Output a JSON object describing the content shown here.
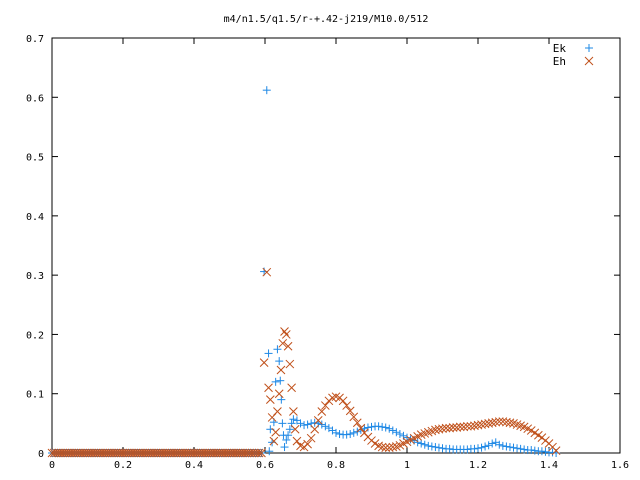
{
  "chart_data": {
    "type": "scatter",
    "title": "m4/n1.5/q1.5/r-+.42-j219/M10.0/512",
    "xlabel": "",
    "ylabel": "",
    "xlim": [
      0,
      1.6
    ],
    "ylim": [
      0,
      0.7
    ],
    "xticks": [
      "0",
      "0.2",
      "0.4",
      "0.6",
      "0.8",
      "1",
      "1.2",
      "1.4",
      "1.6"
    ],
    "yticks": [
      "0",
      "0.1",
      "0.2",
      "0.3",
      "0.4",
      "0.5",
      "0.6",
      "0.7"
    ],
    "grid": false,
    "legend_position": "top-right",
    "series": [
      {
        "name": "Ek",
        "marker": "plus",
        "color": "#1e88e5",
        "points": [
          [
            0.0,
            0.0
          ],
          [
            0.05,
            0.0
          ],
          [
            0.1,
            0.0
          ],
          [
            0.15,
            0.0
          ],
          [
            0.2,
            0.0
          ],
          [
            0.25,
            0.0
          ],
          [
            0.3,
            0.0
          ],
          [
            0.35,
            0.0
          ],
          [
            0.4,
            0.0
          ],
          [
            0.45,
            0.0
          ],
          [
            0.5,
            0.0
          ],
          [
            0.55,
            0.0
          ],
          [
            0.59,
            0.0
          ],
          [
            0.605,
            0.612
          ],
          [
            0.61,
            0.168
          ],
          [
            0.612,
            0.003
          ],
          [
            0.615,
            0.04
          ],
          [
            0.62,
            0.018
          ],
          [
            0.625,
            0.052
          ],
          [
            0.63,
            0.12
          ],
          [
            0.635,
            0.175
          ],
          [
            0.64,
            0.155
          ],
          [
            0.643,
            0.122
          ],
          [
            0.646,
            0.09
          ],
          [
            0.649,
            0.05
          ],
          [
            0.652,
            0.03
          ],
          [
            0.655,
            0.01
          ],
          [
            0.66,
            0.022
          ],
          [
            0.665,
            0.03
          ],
          [
            0.67,
            0.04
          ],
          [
            0.675,
            0.05
          ],
          [
            0.68,
            0.057
          ],
          [
            0.69,
            0.055
          ],
          [
            0.7,
            0.05
          ],
          [
            0.71,
            0.047
          ],
          [
            0.72,
            0.048
          ],
          [
            0.73,
            0.05
          ],
          [
            0.74,
            0.051
          ],
          [
            0.75,
            0.05
          ],
          [
            0.76,
            0.048
          ],
          [
            0.77,
            0.045
          ],
          [
            0.78,
            0.042
          ],
          [
            0.79,
            0.038
          ],
          [
            0.8,
            0.034
          ],
          [
            0.81,
            0.032
          ],
          [
            0.82,
            0.031
          ],
          [
            0.83,
            0.031
          ],
          [
            0.84,
            0.032
          ],
          [
            0.85,
            0.034
          ],
          [
            0.86,
            0.036
          ],
          [
            0.87,
            0.039
          ],
          [
            0.88,
            0.041
          ],
          [
            0.89,
            0.043
          ],
          [
            0.9,
            0.044
          ],
          [
            0.91,
            0.045
          ],
          [
            0.92,
            0.045
          ],
          [
            0.93,
            0.044
          ],
          [
            0.94,
            0.043
          ],
          [
            0.95,
            0.041
          ],
          [
            0.96,
            0.038
          ],
          [
            0.97,
            0.035
          ],
          [
            0.98,
            0.032
          ],
          [
            0.99,
            0.029
          ],
          [
            1.0,
            0.026
          ],
          [
            1.01,
            0.023
          ],
          [
            1.02,
            0.021
          ],
          [
            1.03,
            0.018
          ],
          [
            1.04,
            0.016
          ],
          [
            1.05,
            0.014
          ],
          [
            1.06,
            0.012
          ],
          [
            1.07,
            0.011
          ],
          [
            1.08,
            0.01
          ],
          [
            1.09,
            0.009
          ],
          [
            1.1,
            0.008
          ],
          [
            1.11,
            0.007
          ],
          [
            1.12,
            0.007
          ],
          [
            1.13,
            0.006
          ],
          [
            1.14,
            0.006
          ],
          [
            1.15,
            0.006
          ],
          [
            1.16,
            0.006
          ],
          [
            1.17,
            0.006
          ],
          [
            1.18,
            0.007
          ],
          [
            1.19,
            0.007
          ],
          [
            1.2,
            0.008
          ],
          [
            1.21,
            0.009
          ],
          [
            1.22,
            0.011
          ],
          [
            1.23,
            0.013
          ],
          [
            1.24,
            0.016
          ],
          [
            1.25,
            0.018
          ],
          [
            1.26,
            0.014
          ],
          [
            1.27,
            0.012
          ],
          [
            1.28,
            0.011
          ],
          [
            1.29,
            0.01
          ],
          [
            1.3,
            0.009
          ],
          [
            1.31,
            0.008
          ],
          [
            1.32,
            0.007
          ],
          [
            1.33,
            0.006
          ],
          [
            1.34,
            0.005
          ],
          [
            1.35,
            0.005
          ],
          [
            1.36,
            0.004
          ],
          [
            1.37,
            0.003
          ],
          [
            1.38,
            0.003
          ],
          [
            1.39,
            0.002
          ],
          [
            1.4,
            0.001
          ],
          [
            1.41,
            0.001
          ],
          [
            1.42,
            0.0
          ]
        ]
      },
      {
        "name": "Eh",
        "marker": "cross",
        "color": "#c0501a",
        "points": [
          [
            0.0,
            0.0
          ],
          [
            0.05,
            0.0
          ],
          [
            0.1,
            0.0
          ],
          [
            0.15,
            0.0
          ],
          [
            0.2,
            0.0
          ],
          [
            0.25,
            0.0
          ],
          [
            0.3,
            0.0
          ],
          [
            0.35,
            0.0
          ],
          [
            0.4,
            0.0
          ],
          [
            0.45,
            0.0
          ],
          [
            0.5,
            0.0
          ],
          [
            0.55,
            0.0
          ],
          [
            0.59,
            0.0
          ],
          [
            0.605,
            0.305
          ],
          [
            0.61,
            0.11
          ],
          [
            0.615,
            0.09
          ],
          [
            0.62,
            0.06
          ],
          [
            0.625,
            0.02
          ],
          [
            0.63,
            0.035
          ],
          [
            0.635,
            0.07
          ],
          [
            0.64,
            0.1
          ],
          [
            0.645,
            0.14
          ],
          [
            0.65,
            0.185
          ],
          [
            0.655,
            0.205
          ],
          [
            0.66,
            0.2
          ],
          [
            0.665,
            0.18
          ],
          [
            0.67,
            0.15
          ],
          [
            0.675,
            0.11
          ],
          [
            0.68,
            0.07
          ],
          [
            0.685,
            0.04
          ],
          [
            0.69,
            0.02
          ],
          [
            0.7,
            0.012
          ],
          [
            0.71,
            0.01
          ],
          [
            0.72,
            0.015
          ],
          [
            0.73,
            0.025
          ],
          [
            0.74,
            0.04
          ],
          [
            0.75,
            0.055
          ],
          [
            0.76,
            0.07
          ],
          [
            0.77,
            0.08
          ],
          [
            0.78,
            0.088
          ],
          [
            0.79,
            0.093
          ],
          [
            0.8,
            0.095
          ],
          [
            0.81,
            0.093
          ],
          [
            0.82,
            0.088
          ],
          [
            0.83,
            0.08
          ],
          [
            0.84,
            0.071
          ],
          [
            0.85,
            0.061
          ],
          [
            0.86,
            0.051
          ],
          [
            0.87,
            0.042
          ],
          [
            0.88,
            0.034
          ],
          [
            0.89,
            0.027
          ],
          [
            0.9,
            0.021
          ],
          [
            0.91,
            0.016
          ],
          [
            0.92,
            0.012
          ],
          [
            0.93,
            0.01
          ],
          [
            0.94,
            0.009
          ],
          [
            0.95,
            0.009
          ],
          [
            0.96,
            0.01
          ],
          [
            0.97,
            0.011
          ],
          [
            0.98,
            0.013
          ],
          [
            0.99,
            0.016
          ],
          [
            1.0,
            0.019
          ],
          [
            1.01,
            0.022
          ],
          [
            1.02,
            0.025
          ],
          [
            1.03,
            0.028
          ],
          [
            1.04,
            0.031
          ],
          [
            1.05,
            0.033
          ],
          [
            1.06,
            0.035
          ],
          [
            1.07,
            0.037
          ],
          [
            1.08,
            0.039
          ],
          [
            1.09,
            0.04
          ],
          [
            1.1,
            0.041
          ],
          [
            1.11,
            0.042
          ],
          [
            1.12,
            0.042
          ],
          [
            1.13,
            0.043
          ],
          [
            1.14,
            0.043
          ],
          [
            1.15,
            0.044
          ],
          [
            1.16,
            0.044
          ],
          [
            1.17,
            0.045
          ],
          [
            1.18,
            0.045
          ],
          [
            1.19,
            0.046
          ],
          [
            1.2,
            0.047
          ],
          [
            1.21,
            0.048
          ],
          [
            1.22,
            0.049
          ],
          [
            1.23,
            0.05
          ],
          [
            1.24,
            0.051
          ],
          [
            1.25,
            0.052
          ],
          [
            1.26,
            0.053
          ],
          [
            1.27,
            0.053
          ],
          [
            1.28,
            0.052
          ],
          [
            1.29,
            0.051
          ],
          [
            1.3,
            0.05
          ],
          [
            1.31,
            0.048
          ],
          [
            1.32,
            0.046
          ],
          [
            1.33,
            0.044
          ],
          [
            1.34,
            0.041
          ],
          [
            1.35,
            0.038
          ],
          [
            1.36,
            0.034
          ],
          [
            1.37,
            0.03
          ],
          [
            1.38,
            0.026
          ],
          [
            1.39,
            0.021
          ],
          [
            1.4,
            0.016
          ],
          [
            1.41,
            0.01
          ],
          [
            1.42,
            0.004
          ]
        ]
      }
    ]
  }
}
